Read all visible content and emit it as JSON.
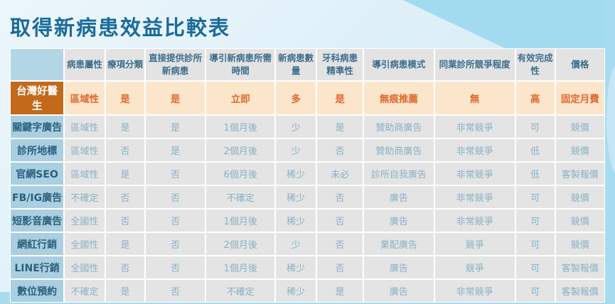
{
  "title": "取得新病患效益比較表",
  "colors": {
    "title_text": "#1a6b9a",
    "sky_blue": "#a2dbf0",
    "bottom_strip": "#a8dbee",
    "header_cell_bg": "#e3e3e3",
    "header_cell_text": "#3d6e8e",
    "row_label_bg": "#aacfe0",
    "row_label_text": "#2b607e",
    "data_cell_bg": "#e4e4e4",
    "data_cell_text": "#8ab1c6",
    "highlight_label_bg": "#c2691a",
    "highlight_row_bg": "#fce6cb",
    "highlight_row_text": "#e0672f"
  },
  "table": {
    "corner_label": "",
    "columns": [
      "病患屬性",
      "療項分類",
      "直接提供診所新病患",
      "導引新病患所需時間",
      "新病患數量",
      "牙科病患精準性",
      "導引病患模式",
      "同業診所競爭程度",
      "有效完成性",
      "價格"
    ],
    "rows": [
      {
        "label": "台灣好醫生",
        "highlight": true,
        "cells": [
          "區域性",
          "是",
          "是",
          "立即",
          "多",
          "是",
          "無痕推薦",
          "無",
          "高",
          "固定月費"
        ]
      },
      {
        "label": "關鍵字廣告",
        "highlight": false,
        "cells": [
          "區域性",
          "是",
          "是",
          "1個月後",
          "少",
          "是",
          "贊助商廣告",
          "非常競爭",
          "可",
          "競價"
        ]
      },
      {
        "label": "診所地標",
        "highlight": false,
        "cells": [
          "區域性",
          "否",
          "是",
          "2個月後",
          "少",
          "否",
          "贊助商廣告",
          "非常競爭",
          "低",
          "競價"
        ]
      },
      {
        "label": "官網SEO",
        "highlight": false,
        "cells": [
          "區域性",
          "是",
          "否",
          "6個月後",
          "稀少",
          "未必",
          "診所自我廣告",
          "非常競爭",
          "低",
          "客製報價"
        ]
      },
      {
        "label": "FB/IG廣告",
        "highlight": false,
        "cells": [
          "不確定",
          "否",
          "否",
          "不確定",
          "稀少",
          "否",
          "廣告",
          "非常競爭",
          "可",
          "競價"
        ]
      },
      {
        "label": "短影音廣告",
        "highlight": false,
        "cells": [
          "全國性",
          "否",
          "否",
          "1個月後",
          "稀少",
          "否",
          "廣告",
          "非常競爭",
          "可",
          "競價"
        ]
      },
      {
        "label": "網紅行銷",
        "highlight": false,
        "cells": [
          "全國性",
          "是",
          "否",
          "2個月後",
          "少",
          "否",
          "業配廣告",
          "競爭",
          "可",
          "競價"
        ]
      },
      {
        "label": "LINE行銷",
        "highlight": false,
        "cells": [
          "全國性",
          "否",
          "否",
          "1個月後",
          "稀少",
          "否",
          "廣告",
          "競爭",
          "可",
          "客製報價"
        ]
      },
      {
        "label": "數位預約",
        "highlight": false,
        "cells": [
          "不確定",
          "是",
          "否",
          "不確定",
          "稀少",
          "是",
          "廣告",
          "非常競爭",
          "可",
          "客製報價"
        ]
      }
    ]
  }
}
